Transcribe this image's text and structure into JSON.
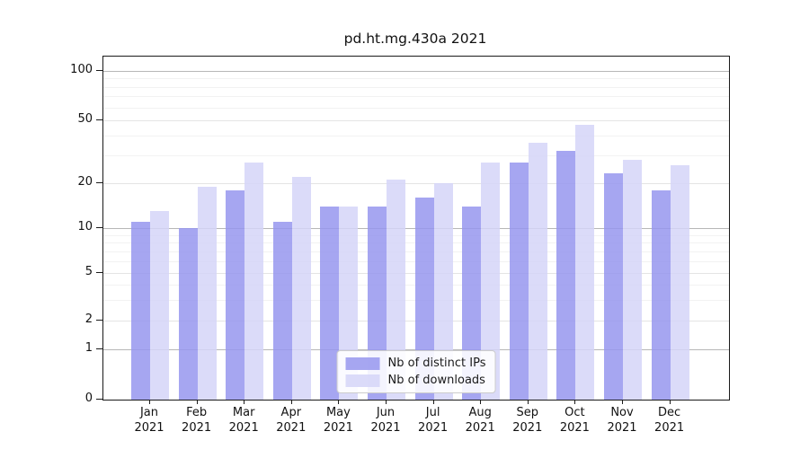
{
  "title": "pd.ht.mg.430a 2021",
  "chart_data": {
    "type": "bar",
    "categories": [
      "Jan",
      "Feb",
      "Mar",
      "Apr",
      "May",
      "Jun",
      "Jul",
      "Aug",
      "Sep",
      "Oct",
      "Nov",
      "Dec"
    ],
    "year_label": "2021",
    "series": [
      {
        "name": "Nb of distinct IPs",
        "color": "rgba(150,150,238,0.85)",
        "values": [
          11,
          10,
          18,
          11,
          14,
          14,
          16,
          14,
          27,
          32,
          23,
          18
        ]
      },
      {
        "name": "Nb of downloads",
        "color": "rgba(213,213,248,0.85)",
        "values": [
          13,
          19,
          27,
          22,
          14,
          21,
          20,
          27,
          36,
          47,
          28,
          26
        ]
      }
    ],
    "xlabel": "",
    "ylabel": "",
    "yscale": "symlog",
    "ylim": [
      0,
      120
    ],
    "y_major_ticks": [
      0,
      1,
      2,
      5,
      10,
      20,
      50,
      100
    ],
    "y_minor_ticks": [
      3,
      4,
      6,
      7,
      8,
      9,
      30,
      40,
      60,
      70,
      80,
      90
    ],
    "grid": true,
    "legend_position": "lower center"
  },
  "colors": {
    "decade_gridline": "#b7b7b7",
    "major_gridline": "#e4e4e4",
    "minor_gridline": "#f2f2f2",
    "spine": "#1a1a1a"
  }
}
